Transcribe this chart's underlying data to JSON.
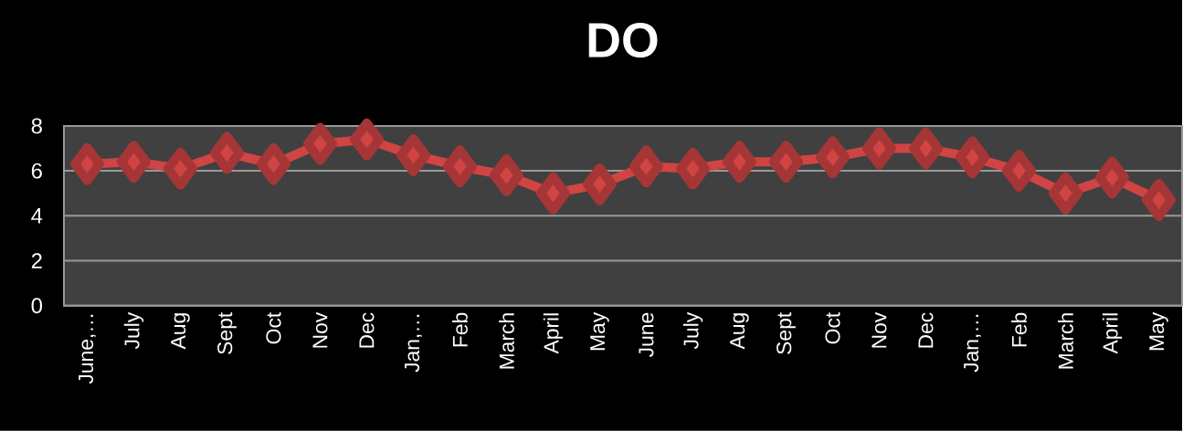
{
  "chart_data": {
    "type": "line",
    "title": "DO",
    "categories": [
      "June,…",
      "July",
      "Aug",
      "Sept",
      "Oct",
      "Nov",
      "Dec",
      "Jan,…",
      "Feb",
      "March",
      "April",
      "May",
      "June",
      "July",
      "Aug",
      "Sept",
      "Oct",
      "Nov",
      "Dec",
      "Jan,…",
      "Feb",
      "March",
      "April",
      "May"
    ],
    "series": [
      {
        "color": "#d04444",
        "values": [
          6.3,
          6.4,
          6.1,
          6.8,
          6.3,
          7.2,
          7.4,
          6.7,
          6.2,
          5.8,
          5.0,
          5.4,
          6.2,
          6.1,
          6.4,
          6.4,
          6.6,
          7.0,
          7.0,
          6.6,
          6.0,
          5.0,
          5.7,
          4.7
        ]
      }
    ],
    "ylim": [
      0,
      8
    ],
    "yticks": [
      0,
      2,
      4,
      6,
      8
    ],
    "grid": "y",
    "marker": "diamond",
    "line_style": "solid"
  }
}
